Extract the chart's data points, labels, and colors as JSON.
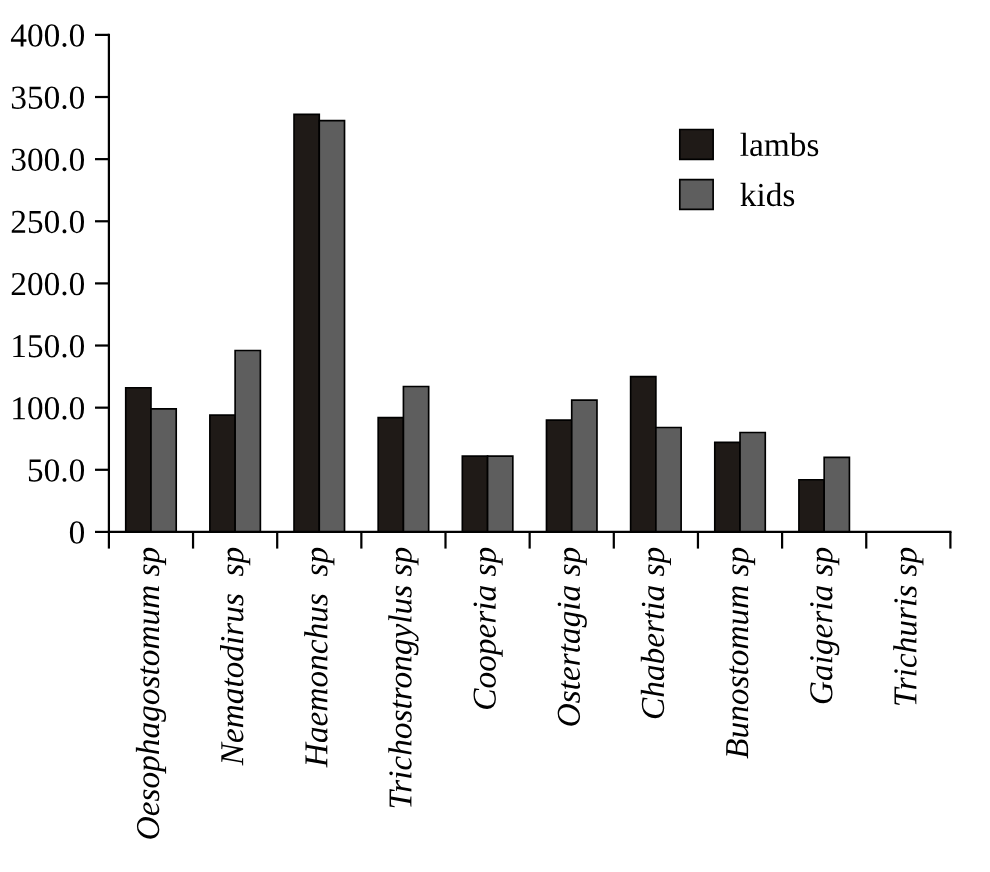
{
  "chart_data": {
    "type": "bar",
    "categories": [
      "Oesophagostomum sp",
      "Nematodirus  sp",
      "Haemonchus  sp",
      "Trichostrongylus sp",
      "Cooperia sp",
      "Ostertagia sp",
      "Chabertia sp",
      "Bunostomum sp",
      "Gaigeria sp",
      "Trichuris sp"
    ],
    "series": [
      {
        "name": "lambs",
        "color": "#1f1a17",
        "values": [
          116,
          94,
          336,
          92,
          61,
          90,
          125,
          72,
          42,
          0
        ]
      },
      {
        "name": "kids",
        "color": "#5e5e5e",
        "values": [
          99,
          146,
          331,
          117,
          61,
          106,
          84,
          80,
          60,
          0
        ]
      }
    ],
    "ylim": [
      0,
      400
    ],
    "yticks": [
      {
        "value": 0,
        "label": "0"
      },
      {
        "value": 50,
        "label": "50.0"
      },
      {
        "value": 100,
        "label": "100.0"
      },
      {
        "value": 150,
        "label": "150.0"
      },
      {
        "value": 200,
        "label": "200.0"
      },
      {
        "value": 250,
        "label": "250.0"
      },
      {
        "value": 300,
        "label": "300.0"
      },
      {
        "value": 350,
        "label": "350.0"
      },
      {
        "value": 400,
        "label": "400.0"
      }
    ],
    "grid": false,
    "legend": "top right"
  }
}
